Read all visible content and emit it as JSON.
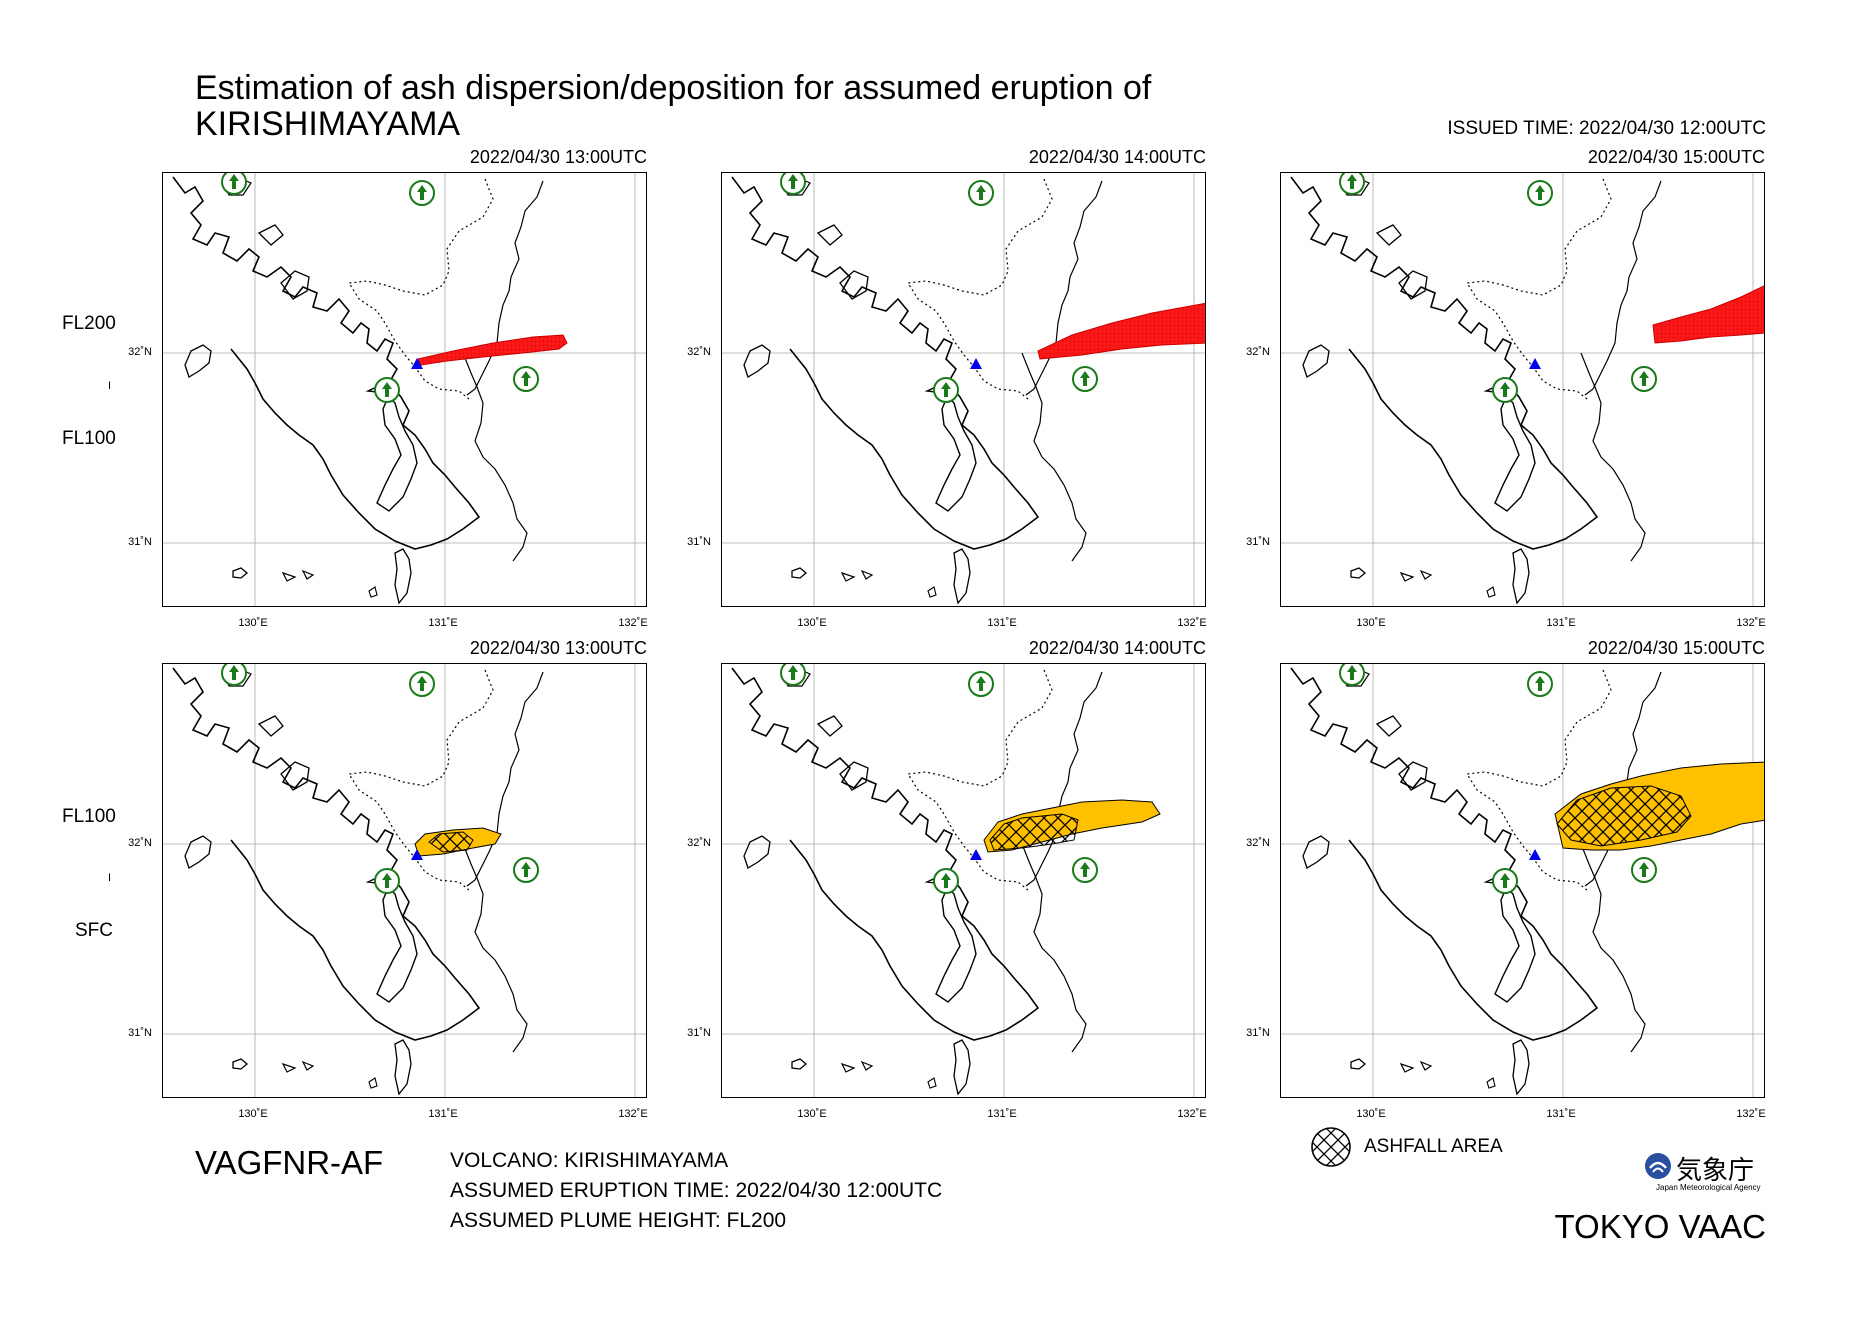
{
  "title_line1": "Estimation of ash dispersion/deposition for assumed eruption of",
  "title_line2": "KIRISHIMAYAMA",
  "issued_time": "ISSUED TIME: 2022/04/30 12:00UTC",
  "top_row": {
    "label_top": "FL200",
    "label_sep": "I",
    "label_bottom": "FL100",
    "color": "#ff0000",
    "panels": [
      {
        "time": "2022/04/30 13:00UTC"
      },
      {
        "time": "2022/04/30 14:00UTC"
      },
      {
        "time": "2022/04/30 15:00UTC"
      }
    ]
  },
  "bottom_row": {
    "label_top": "FL100",
    "label_sep": "I",
    "label_bottom": "SFC",
    "color": "#ffc000",
    "panels": [
      {
        "time": "2022/04/30 13:00UTC"
      },
      {
        "time": "2022/04/30 14:00UTC"
      },
      {
        "time": "2022/04/30 15:00UTC"
      }
    ]
  },
  "axes": {
    "lat_labels": [
      "32˚N",
      "31˚N"
    ],
    "lon_labels": [
      "130˚E",
      "131˚E",
      "132˚E"
    ]
  },
  "product_id": "VAGFNR-AF",
  "volcano": "VOLCANO: KIRISHIMAYAMA",
  "eruption_time": "ASSUMED ERUPTION TIME: 2022/04/30 12:00UTC",
  "plume_height": "ASSUMED PLUME HEIGHT: FL200",
  "legend_ashfall": "ASHFALL AREA",
  "agency_jp": "気象庁",
  "agency_en": "Japan Meteorological Agency",
  "vaac": "TOKYO VAAC",
  "colors": {
    "volcano_marker": "#0000ee",
    "airport": "#1a7a1a",
    "ash_high": "#ff0000",
    "ash_low": "#ffc000"
  }
}
